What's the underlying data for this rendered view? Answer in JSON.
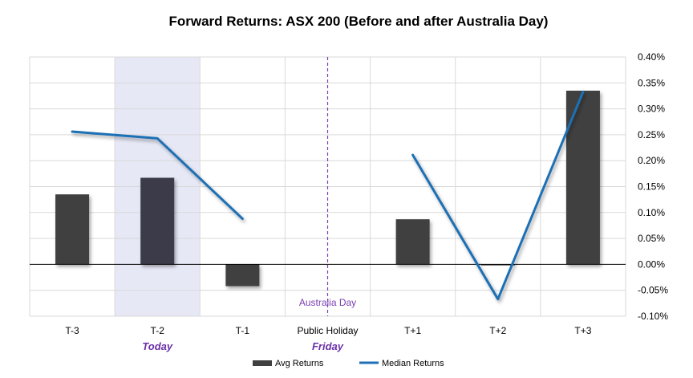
{
  "chart_data": {
    "type": "bar",
    "title": "Forward Returns: ASX 200 (Before and after Australia Day)",
    "categories": [
      "T-3",
      "T-2",
      "T-1",
      "Public Holiday",
      "T+1",
      "T+2",
      "T+3"
    ],
    "category_sublabels": [
      "",
      "Today",
      "",
      "Friday",
      "",
      "",
      ""
    ],
    "series": [
      {
        "name": "Avg Returns",
        "type": "bar",
        "values": [
          0.00135,
          0.00167,
          -0.00042,
          null,
          0.00087,
          -2e-05,
          0.00335
        ]
      },
      {
        "name": "Median Returns",
        "type": "line",
        "segments": [
          {
            "categories": [
              "T-3",
              "T-2",
              "T-1"
            ],
            "values": [
              0.00256,
              0.00243,
              0.00088
            ]
          },
          {
            "categories": [
              "T+1",
              "T+2",
              "T+3"
            ],
            "values": [
              0.00211,
              -0.00067,
              0.00333
            ]
          }
        ]
      }
    ],
    "y_axis": {
      "position": "right",
      "min": -0.001,
      "max": 0.004,
      "step": 0.0005,
      "tick_labels": [
        "-0.10%",
        "-0.05%",
        "0.00%",
        "0.05%",
        "0.10%",
        "0.15%",
        "0.20%",
        "0.25%",
        "0.30%",
        "0.35%",
        "0.40%"
      ]
    },
    "grid": true,
    "highlight_category": "T-2",
    "marker_category": "Public Holiday",
    "marker_label": "Australia Day",
    "legend_position": "bottom",
    "colors": {
      "bars": "#404040",
      "highlight_bar": "#3a3b4a",
      "line": "#1f6fb4",
      "highlight_band": "#e6e8f6",
      "sublabel": "#6b2fa8",
      "marker": "#7a3fb0",
      "grid": "#d9d9d9",
      "zero_line": "#000000"
    }
  }
}
